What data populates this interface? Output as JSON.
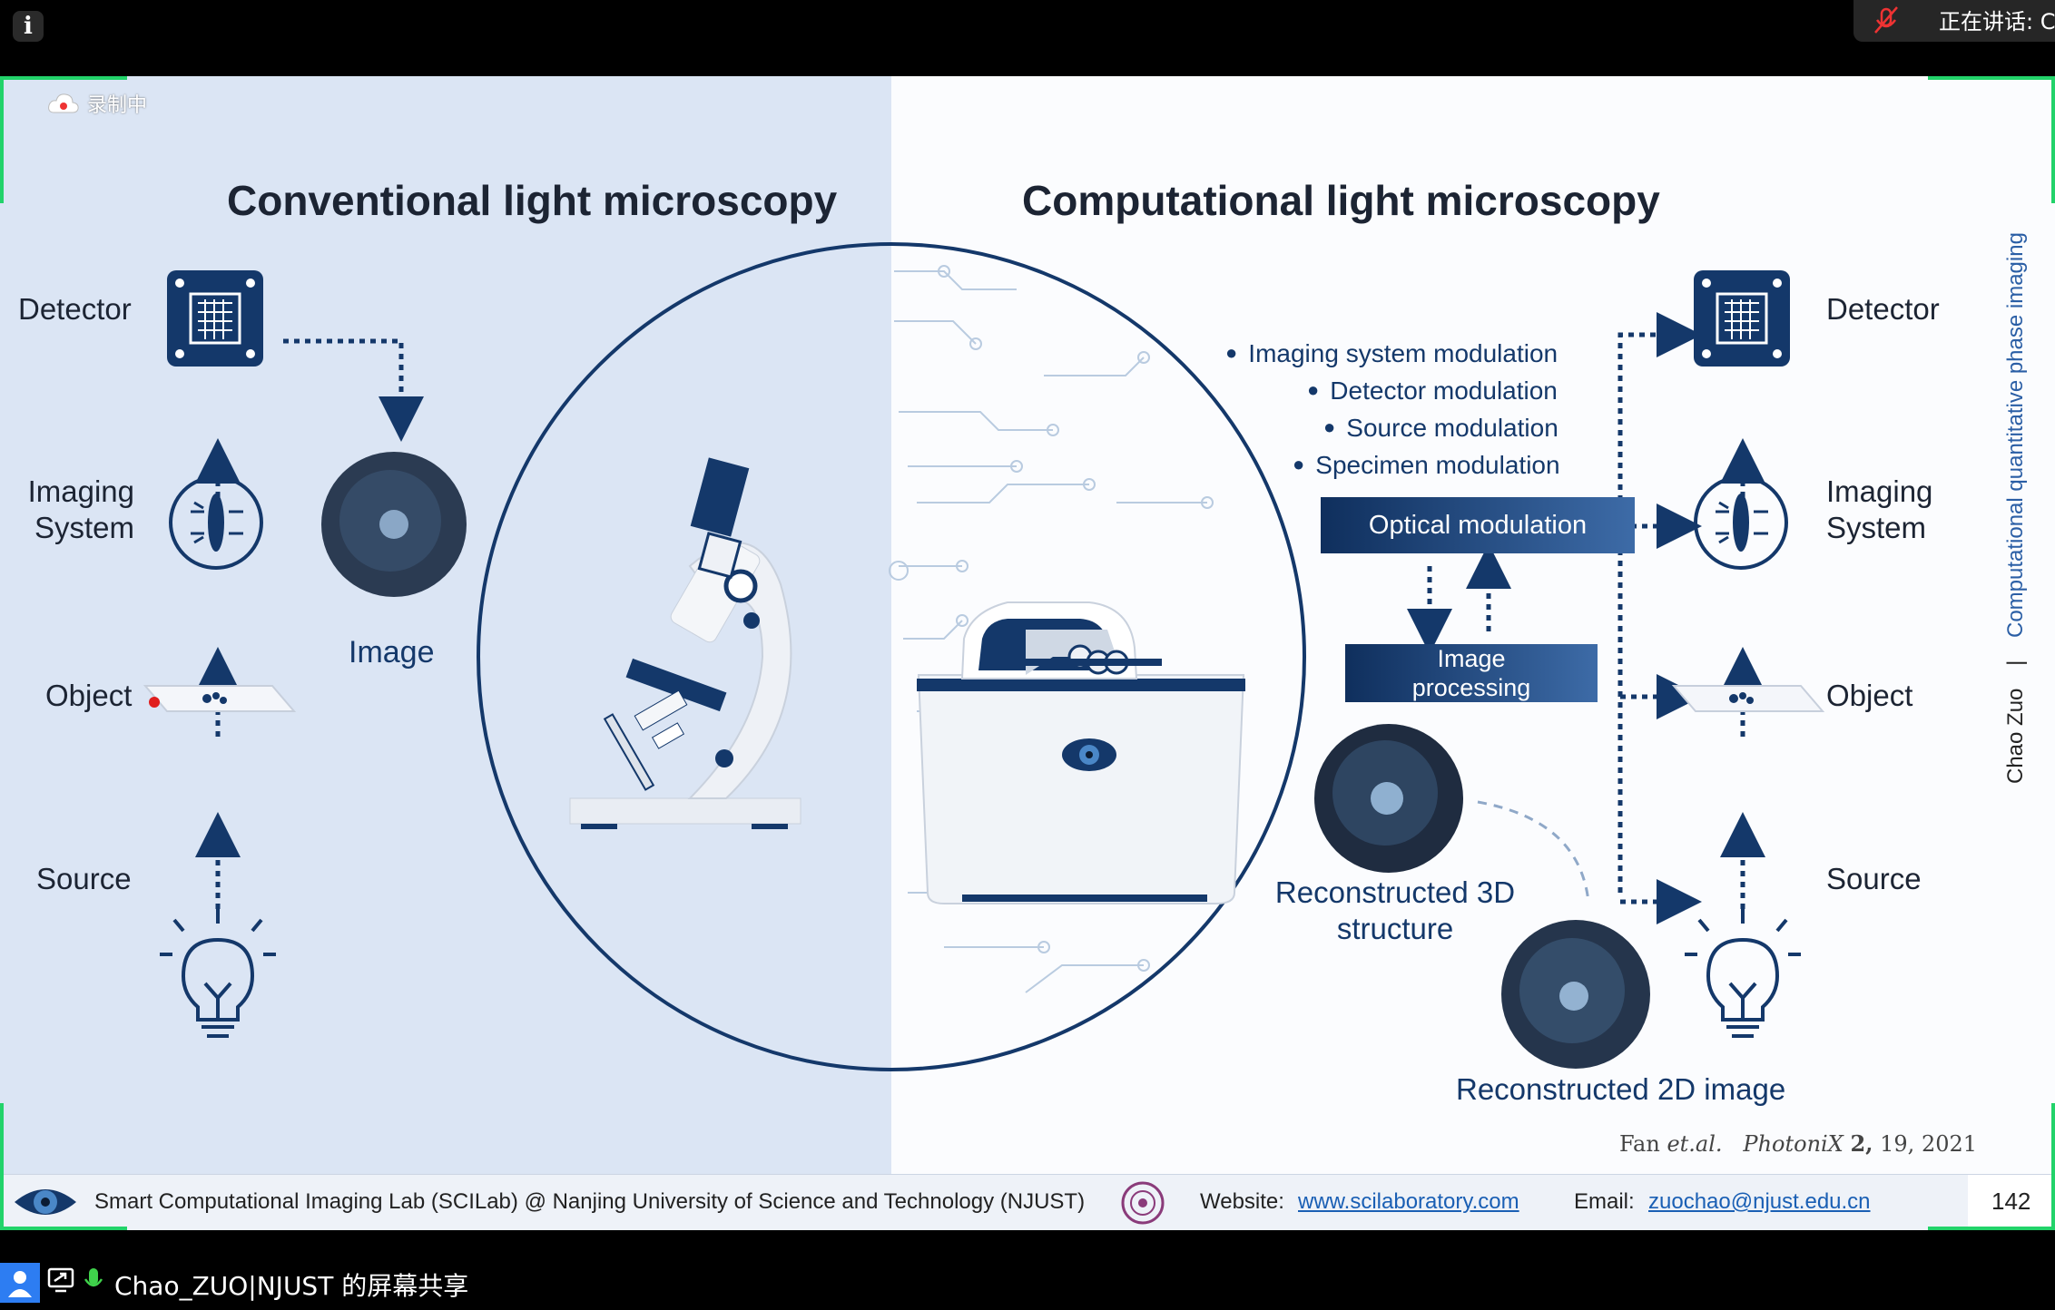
{
  "zoom": {
    "recording_label": "录制中",
    "speaking_label": "正在讲话: C",
    "share_label": "Chao_ZUO|NJUST 的屏幕共享"
  },
  "slide": {
    "left_title": "Conventional light microscopy",
    "right_title": "Computational light microscopy",
    "left": {
      "detector": "Detector",
      "imaging_system": [
        "Imaging",
        "System"
      ],
      "object": "Object",
      "source": "Source",
      "image": "Image"
    },
    "right": {
      "detector": "Detector",
      "imaging_system": [
        "Imaging",
        "System"
      ],
      "object": "Object",
      "source": "Source",
      "bullets": [
        "Imaging system modulation",
        "Detector modulation",
        "Source modulation",
        "Specimen modulation"
      ],
      "optical_modulation": "Optical modulation",
      "image_processing": [
        "Image",
        "processing"
      ],
      "recon_3d": [
        "Reconstructed 3D",
        "structure"
      ],
      "recon_2d": "Reconstructed 2D image"
    },
    "citation": {
      "authors": "Fan",
      "etal": "et.al.",
      "journal": "PhotoniX",
      "volume": "2,",
      "rest": "19, 2021"
    },
    "vertical_text": {
      "author": "Chao Zuo",
      "sep": "|",
      "topic": "Computational quantitative phase imaging"
    },
    "footer": {
      "lab": "Smart Computational Imaging Lab (SCILab) @ Nanjing University of Science and Technology (NJUST)",
      "website_label": "Website:",
      "website": "www.scilaboratory.com",
      "email_label": "Email:",
      "email": "zuochao@njust.edu.cn",
      "page": "142"
    }
  },
  "colors": {
    "navy": "#14386a",
    "left_panel": "#dbe5f4",
    "frame": "#22d36a"
  }
}
